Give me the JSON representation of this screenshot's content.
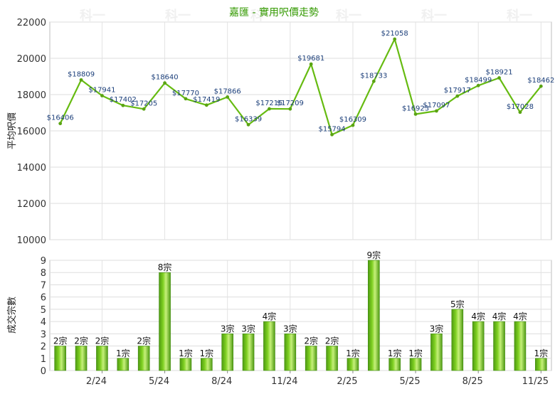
{
  "chart_data": [
    {
      "type": "line",
      "title": "嘉匯 - 實用呎價走勢",
      "ylabel": "平均呎價",
      "ylim": [
        10000,
        22000
      ],
      "yticks": [
        10000,
        12000,
        14000,
        16000,
        18000,
        20000,
        22000
      ],
      "grid": true,
      "line_color": "#66bb11",
      "series": [
        {
          "values": [
            16406,
            18809,
            17941,
            17402,
            17205,
            18640,
            17770,
            17419,
            17866,
            16339,
            17215,
            17209,
            19681,
            15794,
            16309,
            18733,
            21058,
            16923,
            17097,
            17917,
            18499,
            18921,
            17028,
            18462
          ],
          "labels": [
            "$16406",
            "$18809",
            "$17941",
            "$17402",
            "$17205",
            "$18640",
            "$17770",
            "$17419",
            "$17866",
            "$16339",
            "$17215",
            "$17209",
            "$19681",
            "$15794",
            "$16309",
            "$18733",
            "$21058",
            "$16923",
            "$17097",
            "$17917",
            "$18499",
            "$18921",
            "$17028",
            "$18462"
          ]
        }
      ]
    },
    {
      "type": "bar",
      "ylabel": "成交宗數",
      "ylim": [
        0,
        9
      ],
      "yticks": [
        "0",
        "1",
        "2",
        "3",
        "4",
        "5",
        "6",
        "7",
        "8",
        "9"
      ],
      "xticks": [
        {
          "index": 2,
          "label": "2/24"
        },
        {
          "index": 5,
          "label": "5/24"
        },
        {
          "index": 8,
          "label": "8/24"
        },
        {
          "index": 11,
          "label": "11/24"
        },
        {
          "index": 14,
          "label": "2/25"
        },
        {
          "index": 17,
          "label": "5/25"
        },
        {
          "index": 20,
          "label": "8/25"
        },
        {
          "index": 23,
          "label": "11/25"
        }
      ],
      "grid": true,
      "values": [
        2,
        2,
        2,
        1,
        2,
        8,
        1,
        1,
        3,
        3,
        4,
        3,
        2,
        2,
        1,
        9,
        1,
        1,
        3,
        5,
        4,
        4,
        4,
        1
      ],
      "labels": [
        "2宗",
        "2宗",
        "2宗",
        "1宗",
        "2宗",
        "8宗",
        "1宗",
        "1宗",
        "3宗",
        "3宗",
        "4宗",
        "3宗",
        "2宗",
        "2宗",
        "1宗",
        "9宗",
        "1宗",
        "1宗",
        "3宗",
        "5宗",
        "4宗",
        "4宗",
        "4宗",
        "1宗"
      ]
    }
  ],
  "watermark": "科一"
}
